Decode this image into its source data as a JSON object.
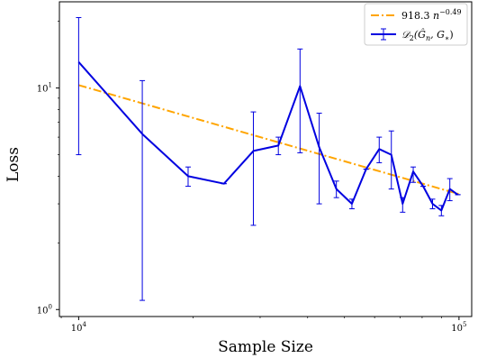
{
  "chart_data": {
    "type": "line",
    "title": "",
    "xlabel": "Sample Size",
    "ylabel": "Loss",
    "xscale": "log",
    "yscale": "log",
    "xlim": [
      8900,
      108000
    ],
    "ylim": [
      0.93,
      24.5
    ],
    "grid": false,
    "legend_position": "top-right",
    "x_ticks": [
      {
        "value": 10000,
        "base": "10",
        "exp": "4"
      },
      {
        "value": 100000,
        "base": "10",
        "exp": "5"
      }
    ],
    "y_ticks": [
      {
        "value": 1,
        "base": "10",
        "exp": "0"
      },
      {
        "value": 10,
        "base": "10",
        "exp": "1"
      }
    ],
    "series": [
      {
        "name": "918.3 n^{-0.49}",
        "legend_label": {
          "main": "918.3 ",
          "var": "n",
          "exp": "−0.49"
        },
        "style": "dashdot",
        "color": "#FFA500",
        "x": [
          10000,
          100000
        ],
        "y": [
          10.3,
          3.32
        ]
      },
      {
        "name": "D2(Ĝn, G*)",
        "legend_label": {
          "main": "𝒟",
          "sub": "2",
          "args": "(Ĝ",
          "args_sub": "n",
          "args2": ", G",
          "args2_sub": "∗",
          "close": ")"
        },
        "style": "solid",
        "color": "#0000E0",
        "x": [
          10000,
          14700,
          19400,
          24100,
          28800,
          33500,
          38200,
          42900,
          47600,
          52300,
          57000,
          61700,
          66400,
          71100,
          75800,
          80500,
          85200,
          89900,
          94600,
          99300
        ],
        "y": [
          13.1,
          6.2,
          4.0,
          3.7,
          5.2,
          5.5,
          10.2,
          5.4,
          3.5,
          3.0,
          4.3,
          5.3,
          5.0,
          3.0,
          4.2,
          3.6,
          3.0,
          2.8,
          3.5,
          3.3
        ],
        "error_low": [
          5.0,
          1.1,
          3.6,
          3.7,
          2.4,
          5.0,
          5.1,
          3.0,
          3.2,
          2.85,
          4.3,
          4.6,
          3.5,
          2.75,
          3.75,
          3.6,
          2.85,
          2.65,
          3.1,
          3.3
        ],
        "error_high": [
          20.8,
          10.8,
          4.4,
          3.7,
          7.8,
          6.0,
          15.0,
          7.7,
          3.8,
          3.15,
          4.3,
          6.0,
          6.4,
          3.2,
          4.4,
          3.6,
          3.15,
          2.95,
          3.9,
          3.3
        ]
      }
    ]
  }
}
